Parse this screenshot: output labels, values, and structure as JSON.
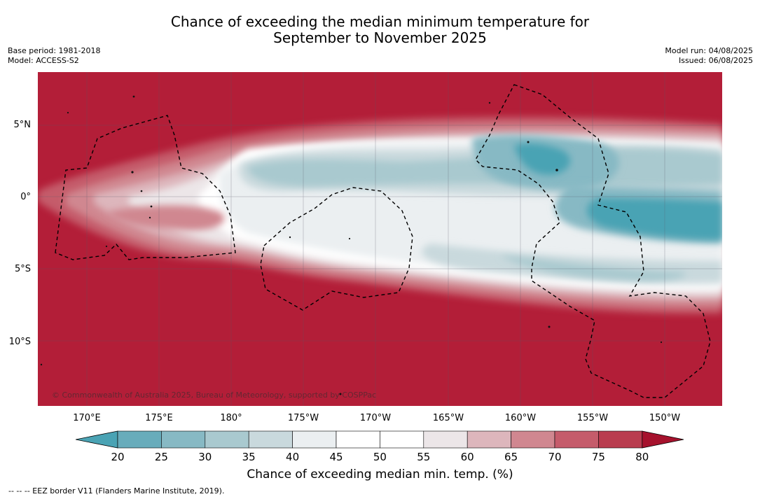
{
  "title": {
    "line1": "Chance of exceeding the median minimum temperature for",
    "line2": "September to November 2025"
  },
  "meta_left": {
    "base_period": "Base period: 1981-2018",
    "model": "Model: ACCESS-S2"
  },
  "meta_right": {
    "model_run": "Model run: 04/08/2025",
    "issued": "Issued: 06/08/2025"
  },
  "map": {
    "lat_labels": [
      "5°N",
      "0°",
      "5°S",
      "10°S"
    ],
    "lon_labels": [
      "170°E",
      "175°E",
      "180°",
      "175°W",
      "170°W",
      "165°W",
      "160°W",
      "155°W",
      "150°W"
    ],
    "copyright": "© Commonwealth of Australia 2025, Bureau of Meteorology, supported by COSPPac",
    "background_color": "#b31e38"
  },
  "colorbar": {
    "ticks": [
      "20",
      "25",
      "30",
      "35",
      "40",
      "45",
      "50",
      "55",
      "60",
      "65",
      "70",
      "75",
      "80"
    ],
    "colors": [
      "#4aa3b4",
      "#68acbb",
      "#87b9c4",
      "#a9c9cf",
      "#c9d9dd",
      "#ebeff1",
      "#ffffff",
      "#ffffff",
      "#ece6e8",
      "#ddb6bc",
      "#d08790",
      "#c55c6b",
      "#b93c4f",
      "#a6122d"
    ],
    "label": "Chance of exceeding median min. temp. (%)"
  },
  "footnote": "--  --  -- EEZ border V11 (Flanders Marine Institute, 2019)."
}
